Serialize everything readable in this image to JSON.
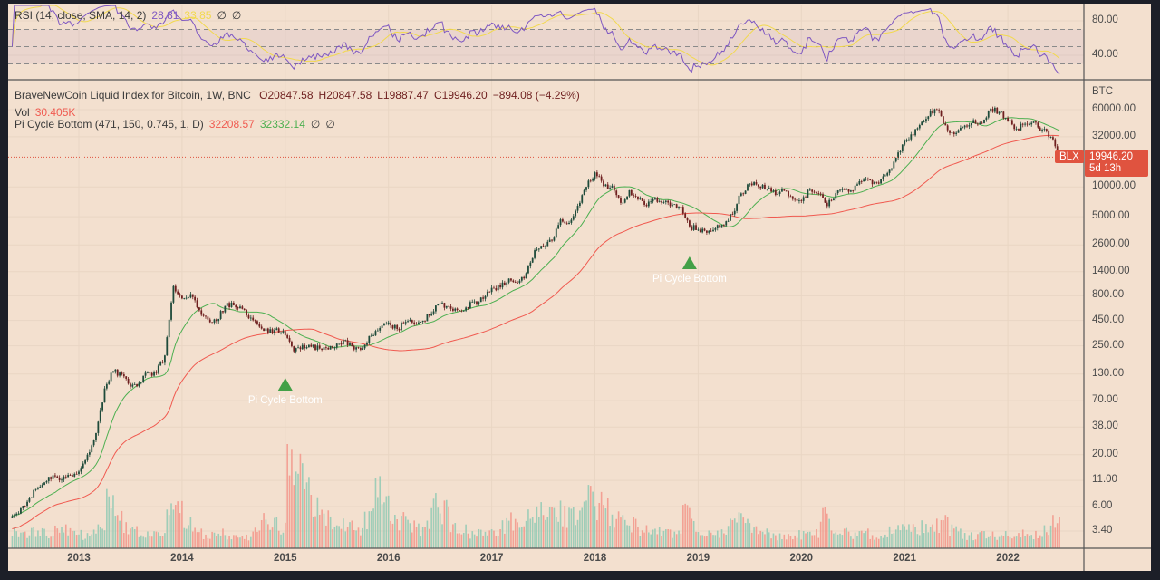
{
  "rsi_legend": {
    "title": "RSI (14, close, SMA, 14, 2)",
    "rsi_value": "28.81",
    "sma_value": "33.85",
    "hidden1": "∅",
    "hidden2": "∅"
  },
  "main_legend": {
    "symbol": "BraveNewCoin Liquid Index for Bitcoin, 1W, BNC",
    "open": "O20847.58",
    "high": "H20847.58",
    "low": "L19887.47",
    "close": "C19946.20",
    "change": "−894.08 (−4.29%)",
    "vol_label": "Vol",
    "vol_value": "30.405K",
    "pi_title": "Pi Cycle Bottom (471, 150, 0.745, 1, D)",
    "pi_red": "32208.57",
    "pi_green": "32332.14",
    "hidden1": "∅",
    "hidden2": "∅"
  },
  "price_badge": {
    "symbol": "BLX",
    "price": "19946.20",
    "countdown": "5d 13h"
  },
  "colors": {
    "background": "#f3e0cf",
    "up": "#1e4a3a",
    "down": "#6e1f1f",
    "pi_red": "#f05a50",
    "pi_green": "#4caf50",
    "rsi": "#7e57c2",
    "rsi_sma": "#f2d94e",
    "vol_up": "#8fc9b4",
    "vol_down": "#f2958a",
    "badge": "#e0533f"
  },
  "chart_data": {
    "type": "candlestick",
    "y_scale": "log",
    "currency_label": "BTC",
    "grid": true,
    "price_ticks": [
      60000,
      32000,
      10000,
      5000,
      2600,
      1400,
      800,
      450,
      250,
      130,
      70,
      38,
      20,
      11,
      6,
      3.4
    ],
    "rsi_ticks": [
      80,
      40
    ],
    "rsi_bands": [
      70,
      50,
      30
    ],
    "x_ticks": [
      "2013",
      "2014",
      "2015",
      "2016",
      "2017",
      "2018",
      "2019",
      "2020",
      "2021",
      "2022"
    ],
    "monthly_close": {
      "start": "2012-05",
      "values": [
        5.1,
        6.7,
        9,
        10.5,
        12.4,
        11.2,
        12.5,
        13.5,
        20,
        33,
        93,
        139,
        129,
        97,
        106,
        135,
        133,
        200,
        1000,
        750,
        830,
        570,
        460,
        445,
        630,
        640,
        590,
        480,
        390,
        340,
        375,
        320,
        220,
        255,
        245,
        235,
        230,
        263,
        285,
        230,
        236,
        315,
        378,
        430,
        370,
        436,
        416,
        448,
        530,
        670,
        624,
        575,
        608,
        700,
        745,
        960,
        970,
        1190,
        1080,
        1350,
        2300,
        2480,
        2870,
        4700,
        4340,
        6450,
        10000,
        14000,
        10200,
        10300,
        6900,
        9250,
        7500,
        6400,
        7730,
        7030,
        6630,
        6300,
        4000,
        3700,
        3450,
        3820,
        4100,
        5300,
        8600,
        10800,
        10100,
        9600,
        8300,
        9150,
        7550,
        7200,
        9350,
        8550,
        6400,
        8650,
        9450,
        9150,
        11350,
        11650,
        10780,
        13800,
        19700,
        29000,
        33100,
        45200,
        58800,
        57700,
        37300,
        35000,
        41500,
        47100,
        43800,
        61300,
        57000,
        46300,
        38500,
        43200,
        45500,
        37700,
        31800,
        19946.2
      ]
    },
    "monthly_volume_relative": [
      20,
      18,
      22,
      20,
      18,
      22,
      25,
      20,
      18,
      20,
      25,
      70,
      40,
      25,
      22,
      18,
      18,
      20,
      45,
      55,
      30,
      22,
      20,
      18,
      20,
      15,
      14,
      15,
      25,
      35,
      30,
      25,
      100,
      95,
      70,
      55,
      40,
      35,
      30,
      35,
      25,
      40,
      70,
      60,
      45,
      35,
      30,
      25,
      40,
      60,
      50,
      30,
      25,
      20,
      22,
      28,
      25,
      30,
      35,
      28,
      40,
      45,
      40,
      50,
      45,
      40,
      55,
      70,
      60,
      50,
      40,
      35,
      30,
      25,
      25,
      22,
      20,
      18,
      45,
      30,
      20,
      22,
      20,
      30,
      35,
      30,
      25,
      20,
      18,
      15,
      18,
      18,
      18,
      20,
      45,
      30,
      22,
      20,
      18,
      20,
      18,
      20,
      25,
      30,
      30,
      28,
      25,
      30,
      35,
      25,
      20,
      18,
      18,
      20,
      18,
      18,
      16,
      18,
      16,
      18,
      25,
      35
    ],
    "annotations": [
      {
        "label": "Pi Cycle Bottom",
        "date": "2015-01"
      },
      {
        "label": "Pi Cycle Bottom",
        "date": "2018-12"
      }
    ],
    "last_price": 19946.2
  }
}
